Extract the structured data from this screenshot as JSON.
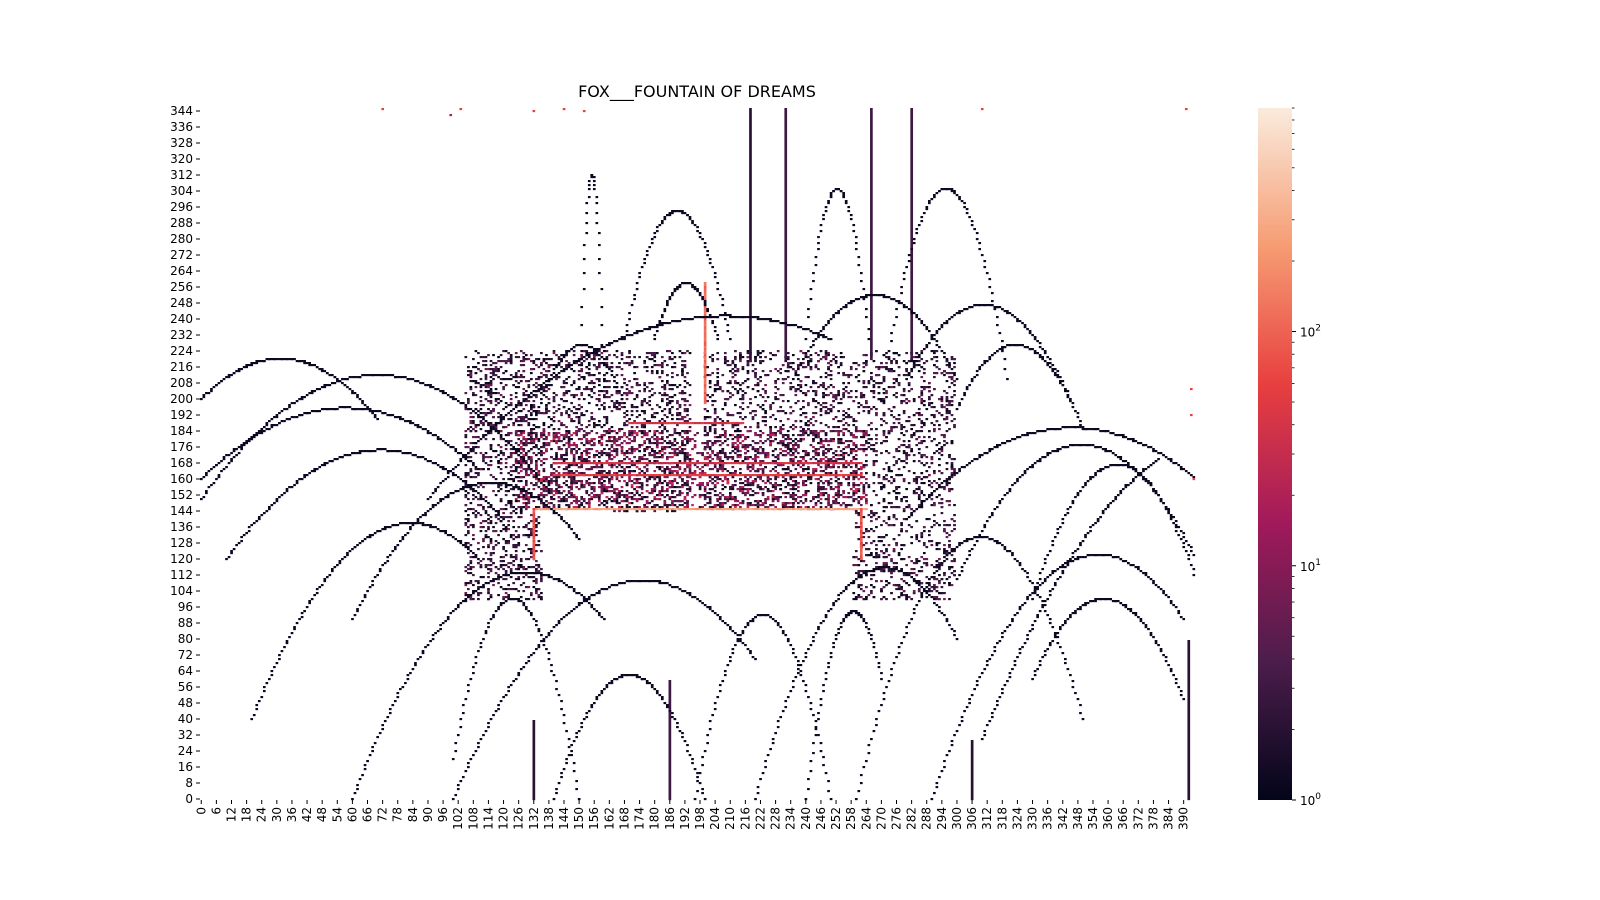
{
  "chart_data": {
    "type": "heatmap",
    "title": "FOX___FOUNTAIN OF DREAMS",
    "xlabel": "",
    "ylabel": "",
    "xlim": [
      0,
      395
    ],
    "ylim": [
      0,
      346
    ],
    "x_ticks": [
      0,
      6,
      12,
      18,
      24,
      30,
      36,
      42,
      48,
      54,
      60,
      66,
      72,
      78,
      84,
      90,
      96,
      102,
      108,
      114,
      120,
      126,
      132,
      138,
      144,
      150,
      156,
      162,
      168,
      174,
      180,
      186,
      192,
      198,
      204,
      210,
      216,
      222,
      228,
      234,
      240,
      246,
      252,
      258,
      264,
      270,
      276,
      282,
      288,
      294,
      300,
      306,
      312,
      318,
      324,
      330,
      336,
      342,
      348,
      354,
      360,
      366,
      372,
      378,
      384,
      390
    ],
    "y_ticks": [
      0,
      8,
      16,
      24,
      32,
      40,
      48,
      56,
      64,
      72,
      80,
      88,
      96,
      104,
      112,
      120,
      128,
      136,
      144,
      152,
      160,
      168,
      176,
      184,
      192,
      200,
      208,
      216,
      224,
      232,
      240,
      248,
      256,
      264,
      272,
      280,
      288,
      296,
      304,
      312,
      320,
      328,
      336,
      344
    ],
    "colorbar": {
      "scale": "log",
      "min": 1,
      "max": 900,
      "ticks": [
        {
          "value": 1,
          "label": "10",
          "exp": "0"
        },
        {
          "value": 10,
          "label": "10",
          "exp": "1"
        },
        {
          "value": 100,
          "label": "10",
          "exp": "2"
        }
      ],
      "colors": [
        "#03051a",
        "#4c1d4b",
        "#a11a5b",
        "#e83f3f",
        "#f69c73",
        "#faebdd"
      ]
    },
    "dense_regions": [
      {
        "x": [
          105,
          195
        ],
        "y": [
          100,
          225
        ],
        "peak": 8
      },
      {
        "x": [
          200,
          300
        ],
        "y": [
          100,
          225
        ],
        "peak": 8
      },
      {
        "x": [
          125,
          265
        ],
        "y": [
          146,
          185
        ],
        "peak": 40
      }
    ],
    "hot_lines": [
      {
        "x": [
          132,
          264
        ],
        "y": [
          145,
          145
        ],
        "value": 300
      },
      {
        "x": [
          140,
          262
        ],
        "y": [
          162,
          162
        ],
        "value": 60
      },
      {
        "x": [
          140,
          262
        ],
        "y": [
          168,
          168
        ],
        "value": 45
      },
      {
        "x": [
          170,
          215
        ],
        "y": [
          188,
          188
        ],
        "value": 50
      },
      {
        "x": [
          200,
          200
        ],
        "y": [
          198,
          258
        ],
        "value": 120
      },
      {
        "x": [
          132,
          132
        ],
        "y": [
          120,
          145
        ],
        "value": 90
      },
      {
        "x": [
          262,
          262
        ],
        "y": [
          120,
          145
        ],
        "value": 90
      }
    ],
    "vertical_lines": [
      {
        "x": 218,
        "y": [
          220,
          346
        ],
        "value": 2
      },
      {
        "x": 232,
        "y": [
          220,
          346
        ],
        "value": 3
      },
      {
        "x": 266,
        "y": [
          220,
          346
        ],
        "value": 3
      },
      {
        "x": 282,
        "y": [
          220,
          346
        ],
        "value": 3
      },
      {
        "x": 186,
        "y": [
          0,
          60
        ],
        "value": 3
      },
      {
        "x": 132,
        "y": [
          0,
          40
        ],
        "value": 2
      },
      {
        "x": 392,
        "y": [
          0,
          80
        ],
        "value": 2
      },
      {
        "x": 306,
        "y": [
          0,
          30
        ],
        "value": 2
      }
    ],
    "dotted_arcs": [
      {
        "x0": 90,
        "y0": 150,
        "x1": 250,
        "y1": 230,
        "peak": 272
      },
      {
        "x0": 150,
        "y0": 195,
        "x1": 160,
        "y1": 195,
        "peak": 312
      },
      {
        "x0": 168,
        "y0": 230,
        "x1": 210,
        "y1": 230,
        "peak": 294
      },
      {
        "x0": 270,
        "y0": 200,
        "x1": 320,
        "y1": 210,
        "peak": 310
      },
      {
        "x0": 240,
        "y0": 230,
        "x1": 265,
        "y1": 230,
        "peak": 305
      },
      {
        "x0": 280,
        "y0": 210,
        "x1": 345,
        "y1": 200,
        "peak": 252
      },
      {
        "x0": 235,
        "y0": 210,
        "x1": 300,
        "y1": 210,
        "peak": 252
      },
      {
        "x0": 300,
        "y0": 195,
        "x1": 350,
        "y1": 185,
        "peak": 232
      },
      {
        "x0": 0,
        "y0": 150,
        "x1": 140,
        "y1": 150,
        "peak": 212
      },
      {
        "x0": 0,
        "y0": 160,
        "x1": 110,
        "y1": 165,
        "peak": 198
      },
      {
        "x0": 10,
        "y0": 120,
        "x1": 120,
        "y1": 140,
        "peak": 184
      },
      {
        "x0": 60,
        "y0": 90,
        "x1": 150,
        "y1": 130,
        "peak": 176
      },
      {
        "x0": 280,
        "y0": 140,
        "x1": 395,
        "y1": 160,
        "peak": 195
      },
      {
        "x0": 300,
        "y0": 110,
        "x1": 395,
        "y1": 120,
        "peak": 182
      },
      {
        "x0": 330,
        "y0": 100,
        "x1": 395,
        "y1": 110,
        "peak": 172
      },
      {
        "x0": 0,
        "y0": 200,
        "x1": 70,
        "y1": 190,
        "peak": 225
      },
      {
        "x0": 130,
        "y0": 180,
        "x1": 170,
        "y1": 190,
        "peak": 232
      },
      {
        "x0": 60,
        "y0": 0,
        "x1": 160,
        "y1": 90,
        "peak": 150
      },
      {
        "x0": 140,
        "y0": 0,
        "x1": 200,
        "y1": 0,
        "peak": 62
      },
      {
        "x0": 100,
        "y0": 0,
        "x1": 220,
        "y1": 70,
        "peak": 140
      },
      {
        "x0": 220,
        "y0": 0,
        "x1": 300,
        "y1": 80,
        "peak": 150
      },
      {
        "x0": 260,
        "y0": 0,
        "x1": 350,
        "y1": 40,
        "peak": 150
      },
      {
        "x0": 330,
        "y0": 60,
        "x1": 390,
        "y1": 50,
        "peak": 105
      },
      {
        "x0": 290,
        "y0": 0,
        "x1": 390,
        "y1": 90,
        "peak": 160
      },
      {
        "x0": 196,
        "y0": 0,
        "x1": 250,
        "y1": 0,
        "peak": 92
      },
      {
        "x0": 310,
        "y0": 30,
        "x1": 380,
        "y1": 170,
        "peak": 190
      },
      {
        "x0": 20,
        "y0": 40,
        "x1": 110,
        "y1": 120,
        "peak": 170
      },
      {
        "x0": 180,
        "y0": 230,
        "x1": 205,
        "y1": 230,
        "peak": 258
      },
      {
        "x0": 240,
        "y0": 0,
        "x1": 270,
        "y1": 60,
        "peak": 120
      },
      {
        "x0": 100,
        "y0": 20,
        "x1": 150,
        "y1": 0,
        "peak": 110
      }
    ],
    "sparse_points": [
      {
        "x": 72,
        "y": 345,
        "value": 60
      },
      {
        "x": 103,
        "y": 345,
        "value": 60
      },
      {
        "x": 132,
        "y": 344,
        "value": 60
      },
      {
        "x": 144,
        "y": 345,
        "value": 60
      },
      {
        "x": 152,
        "y": 344,
        "value": 60
      },
      {
        "x": 310,
        "y": 345,
        "value": 60
      },
      {
        "x": 391,
        "y": 345,
        "value": 60
      },
      {
        "x": 393,
        "y": 205,
        "value": 60
      },
      {
        "x": 393,
        "y": 192,
        "value": 60
      },
      {
        "x": 394,
        "y": 160,
        "value": 60
      },
      {
        "x": 99,
        "y": 342,
        "value": 20
      }
    ]
  }
}
